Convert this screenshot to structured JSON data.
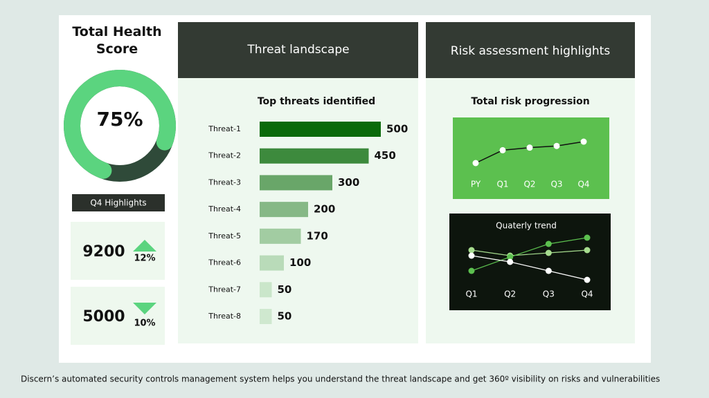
{
  "chart_data": [
    {
      "type": "donut",
      "title": "Total Health Score",
      "values": [
        75
      ],
      "value_labels": [
        "75%"
      ],
      "colors": [
        "#5bd47f",
        "#2f4a39"
      ]
    },
    {
      "type": "hbar",
      "panel_title": "Threat landscape",
      "title": "Top threats identified",
      "categories": [
        "Threat-1",
        "Threat-2",
        "Threat-3",
        "Threat-4",
        "Threat-5",
        "Threat-6",
        "Threat-7",
        "Threat-8"
      ],
      "values": [
        500,
        450,
        300,
        200,
        170,
        100,
        50,
        50
      ],
      "colors": [
        "#0b6a0b",
        "#3d8a3d",
        "#69a669",
        "#86b886",
        "#a2cca2",
        "#b9dbb9",
        "#cae6ca",
        "#cfe8cf"
      ]
    },
    {
      "type": "line",
      "panel_title": "Risk assessment highlights",
      "title": "Total risk progression",
      "categories": [
        "PY",
        "Q1",
        "Q2",
        "Q3",
        "Q4"
      ],
      "values": [
        20,
        35,
        38,
        40,
        45
      ],
      "color": "#111111",
      "background": "#5cc04f"
    },
    {
      "type": "multiline",
      "title": "Quaterly trend",
      "categories": [
        "Q1",
        "Q2",
        "Q3",
        "Q4"
      ],
      "background": "#0d150d",
      "series": [
        {
          "color": "#a6dc8e",
          "values": [
            58,
            50,
            54,
            58
          ]
        },
        {
          "color": "#5cc04f",
          "values": [
            28,
            48,
            67,
            76
          ]
        },
        {
          "color": "#ffffff",
          "values": [
            50,
            41,
            28,
            15
          ]
        }
      ]
    }
  ],
  "highlights": {
    "title": "Q4 Highlights",
    "items": [
      {
        "value": "9200",
        "change": "12%",
        "direction": "up"
      },
      {
        "value": "5000",
        "change": "10%",
        "direction": "down"
      }
    ]
  },
  "caption": "Discern’s automated security controls management system helps you understand the threat landscape and get 360º visibility on risks and vulnerabilities"
}
